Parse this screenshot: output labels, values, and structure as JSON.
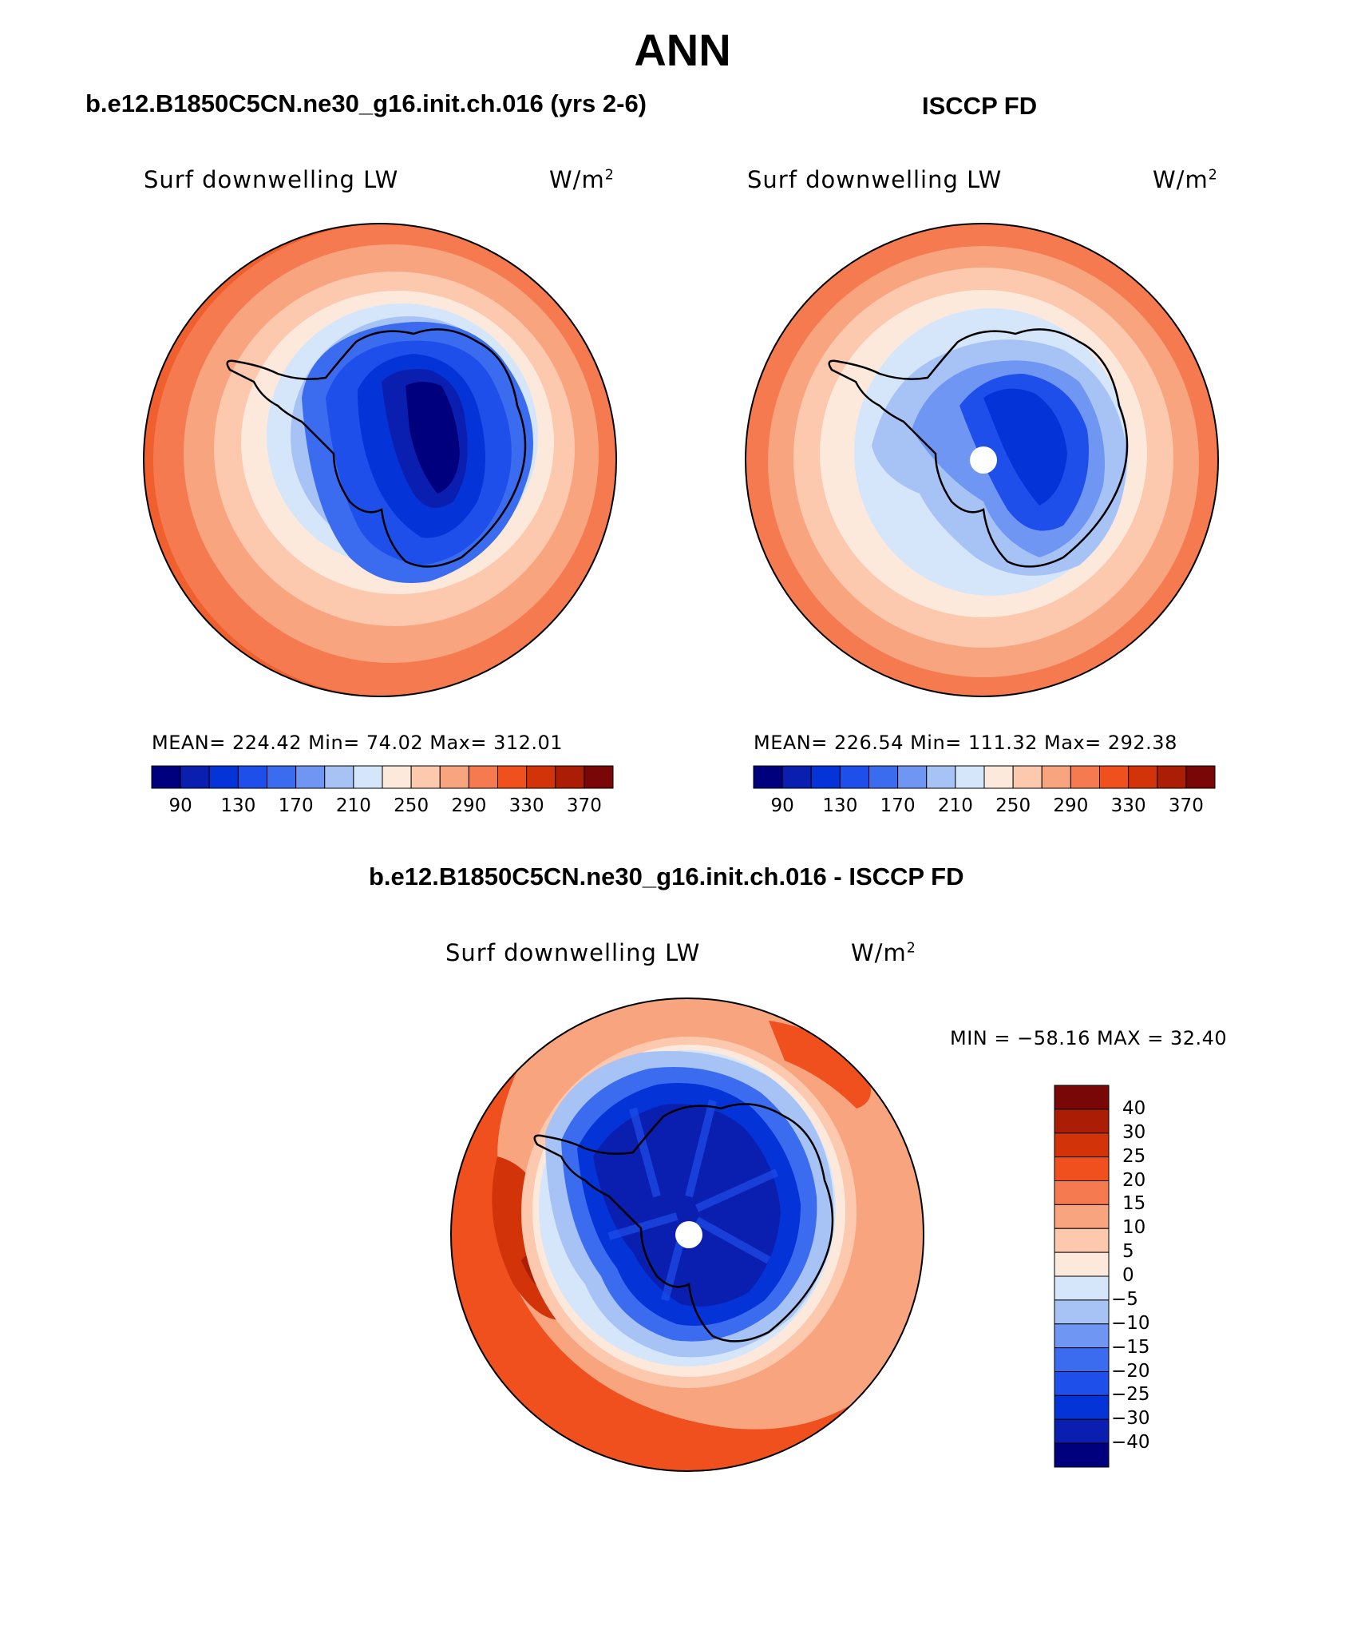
{
  "title": "ANN",
  "panels": [
    {
      "id": "model",
      "header": "b.e12.B1850C5CN.ne30_g16.init.ch.016 (yrs 2-6)",
      "field_label": "Surf downwelling LW",
      "units": "W/m",
      "units_sup": "2",
      "stats": "MEAN= 224.42   Min=   74.02   Max= 312.01"
    },
    {
      "id": "obs",
      "header": "ISCCP FD",
      "field_label": "Surf downwelling LW",
      "units": "W/m",
      "units_sup": "2",
      "stats": "MEAN= 226.54   Min= 111.32   Max= 292.38"
    }
  ],
  "diff_panel": {
    "header": "b.e12.B1850C5CN.ne30_g16.init.ch.016 - ISCCP FD",
    "field_label": "Surf downwelling LW",
    "units": "W/m",
    "units_sup": "2",
    "stats": "MIN = −58.16 MAX =   32.40"
  },
  "colorbar_main": {
    "colors": [
      "#00007f",
      "#0a1fb0",
      "#0433d8",
      "#1f4fea",
      "#3b6cef",
      "#6f96f3",
      "#a7c3f6",
      "#d6e6fa",
      "#fde9dc",
      "#fcc8ae",
      "#f8a47f",
      "#f67a4f",
      "#f0501e",
      "#d33309",
      "#ab1d05",
      "#7a0707"
    ],
    "tick_labels": [
      "90",
      "130",
      "170",
      "210",
      "250",
      "290",
      "330",
      "370"
    ]
  },
  "colorbar_diff": {
    "colors": [
      "#00007f",
      "#0a1fb0",
      "#0433d8",
      "#1f4fea",
      "#3b6cef",
      "#6f96f3",
      "#a7c3f6",
      "#d6e6fa",
      "#fde9dc",
      "#fcc8ae",
      "#f8a47f",
      "#f67a4f",
      "#f0501e",
      "#d33309",
      "#ab1d05",
      "#7a0707"
    ],
    "tick_labels": [
      "40",
      "30",
      "25",
      "20",
      "15",
      "10",
      "5",
      "0",
      "−5",
      "−10",
      "−15",
      "−20",
      "−25",
      "−30",
      "−40"
    ]
  }
}
